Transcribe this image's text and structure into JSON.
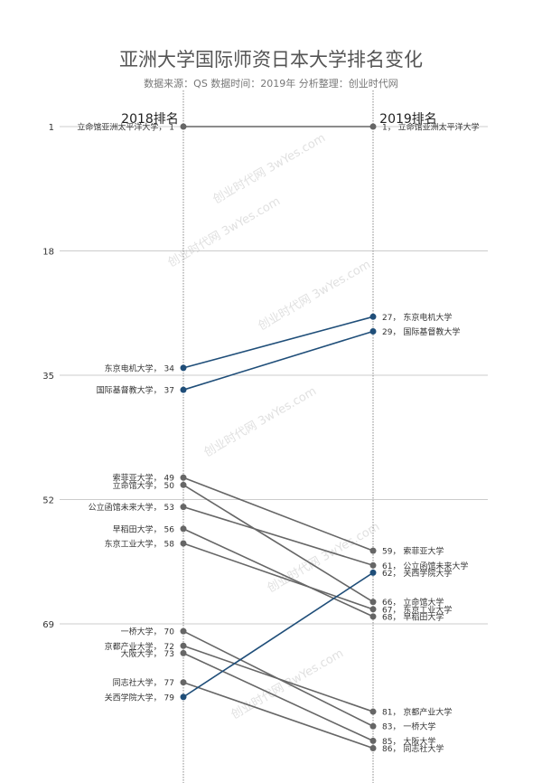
{
  "chart_data": {
    "type": "slope",
    "title": "亚洲大学国际师资日本大学排名变化",
    "subtitle": "数据来源：QS 数据时间：2019年 分析整理：创业时代网",
    "left_label": "2018排名",
    "right_label": "2019排名",
    "y_ticks": [
      1,
      18,
      35,
      52,
      69
    ],
    "ylim": [
      1,
      86
    ],
    "y_inverted": true,
    "grid": true,
    "colors": {
      "declined_or_same": "#666666",
      "improved": "#1f4e79"
    },
    "series": [
      {
        "name": "立命馆亚洲太平洋大学",
        "rank_2018": 1,
        "rank_2019": 1
      },
      {
        "name": "东京电机大学",
        "rank_2018": 34,
        "rank_2019": 27
      },
      {
        "name": "国际基督教大学",
        "rank_2018": 37,
        "rank_2019": 29
      },
      {
        "name": "索菲亚大学",
        "rank_2018": 49,
        "rank_2019": 59
      },
      {
        "name": "立命馆大学",
        "rank_2018": 50,
        "rank_2019": 66
      },
      {
        "name": "公立函馆未来大学",
        "rank_2018": 53,
        "rank_2019": 61
      },
      {
        "name": "早稻田大学",
        "rank_2018": 56,
        "rank_2019": 68
      },
      {
        "name": "东京工业大学",
        "rank_2018": 58,
        "rank_2019": 67
      },
      {
        "name": "一桥大学",
        "rank_2018": 70,
        "rank_2019": 83
      },
      {
        "name": "京都产业大学",
        "rank_2018": 72,
        "rank_2019": 81
      },
      {
        "name": "大阪大学",
        "rank_2018": 73,
        "rank_2019": 85
      },
      {
        "name": "同志社大学",
        "rank_2018": 77,
        "rank_2019": 86
      },
      {
        "name": "关西学院大学",
        "rank_2018": 79,
        "rank_2019": 62
      }
    ]
  },
  "watermark": "创业时代网 3wYes.com"
}
